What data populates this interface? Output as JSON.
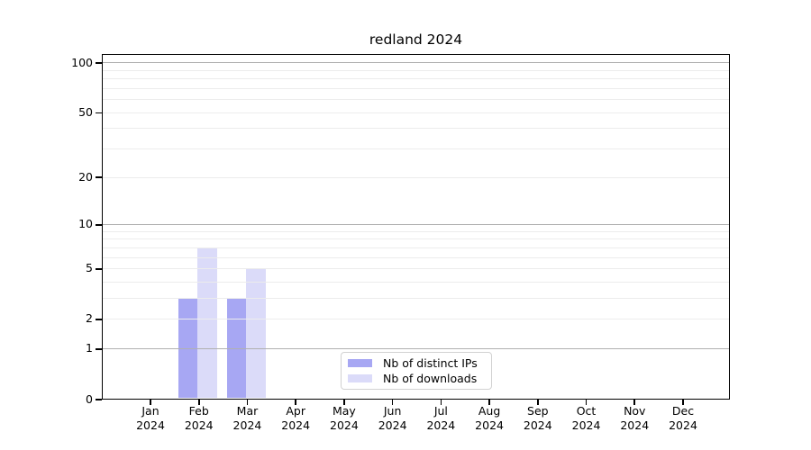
{
  "chart_data": {
    "type": "bar",
    "title": "redland 2024",
    "categories": [
      "Jan",
      "Feb",
      "Mar",
      "Apr",
      "May",
      "Jun",
      "Jul",
      "Aug",
      "Sep",
      "Oct",
      "Nov",
      "Dec"
    ],
    "year_label": "2024",
    "series": [
      {
        "name": "Nb of distinct IPs",
        "color": "#a7a7f3",
        "values": [
          0,
          3,
          3,
          0,
          0,
          0,
          0,
          0,
          0,
          0,
          0,
          0
        ]
      },
      {
        "name": "Nb of downloads",
        "color": "#dbdbf9",
        "values": [
          0,
          7,
          5,
          0,
          0,
          0,
          0,
          0,
          0,
          0,
          0,
          0
        ]
      }
    ],
    "y_axis": {
      "scale": "log1p",
      "tick_values": [
        0,
        1,
        2,
        5,
        10,
        20,
        50,
        100
      ],
      "major_grid_values": [
        1,
        10,
        100
      ],
      "minor_grid_values": [
        2,
        3,
        4,
        5,
        6,
        7,
        8,
        9,
        20,
        30,
        40,
        50,
        60,
        70,
        80,
        90
      ],
      "ylim": [
        0,
        115
      ]
    },
    "legend": {
      "position": "lower center"
    },
    "grid": true,
    "colors": {
      "major_grid": "#b0b0b0",
      "minor_grid": "#ececec",
      "spine": "#000000",
      "background": "#ffffff",
      "legend_border": "#d2d2d2",
      "text": "#000000"
    }
  }
}
